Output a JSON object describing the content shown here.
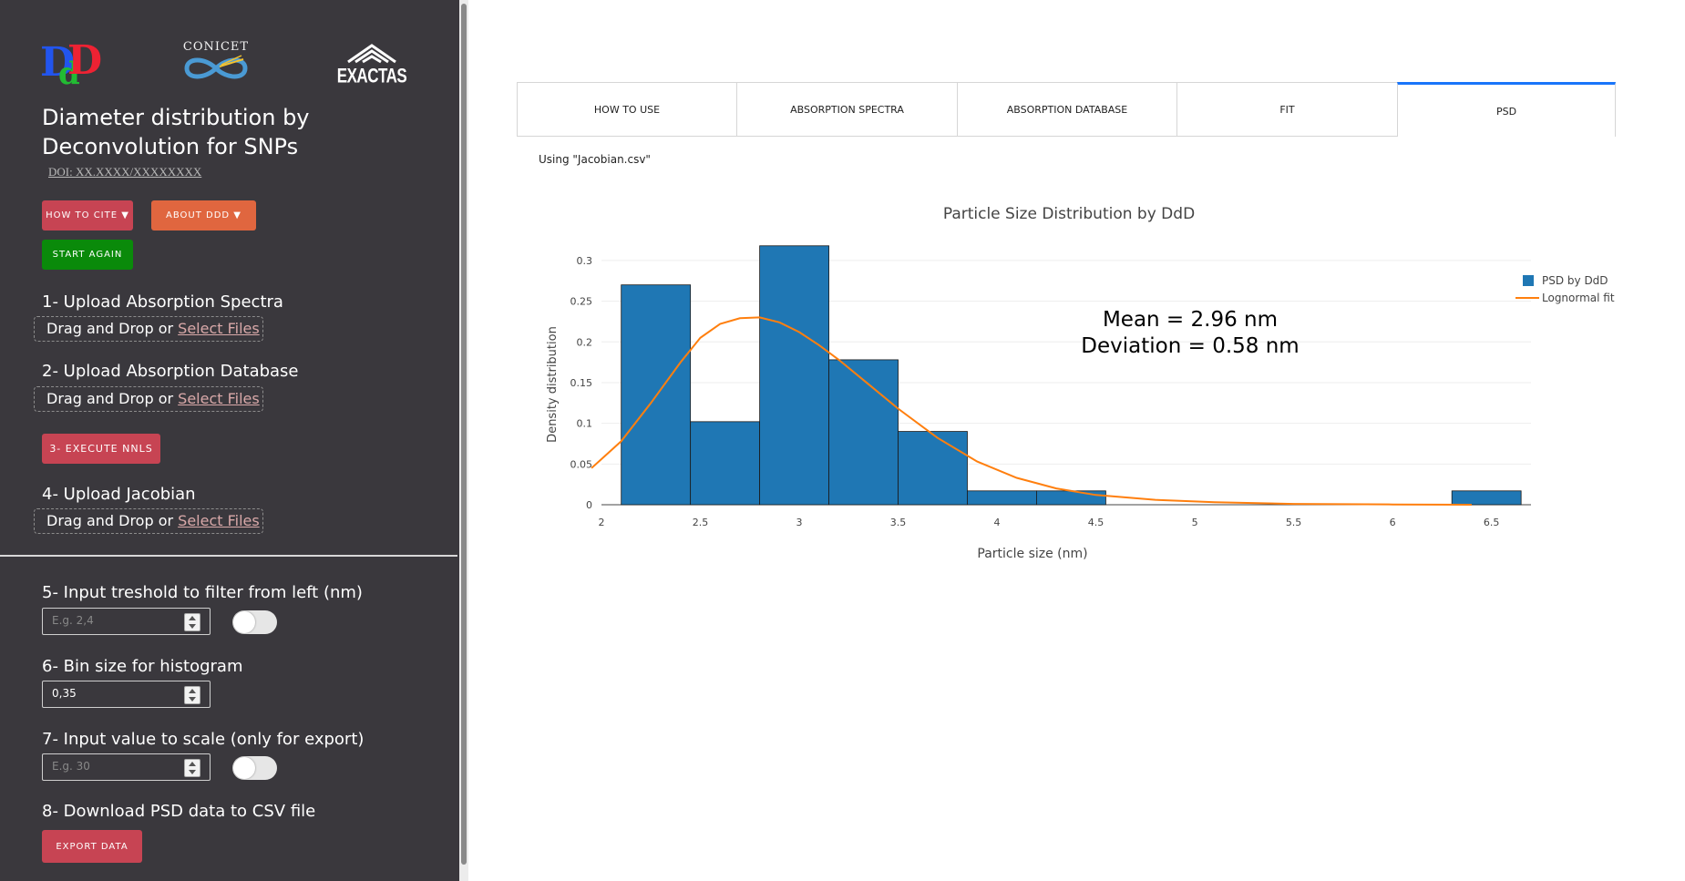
{
  "sidebar": {
    "logos": {
      "ddd_text": "DdD",
      "conicet_text": "CONICET",
      "exactas_text": "EXACTAS"
    },
    "title": "Diameter distribution by Deconvolution for SNPs",
    "doi": "DOI: XX.XXXX/XXXXXXXX",
    "buttons": {
      "cite": "HOW TO CITE ▼",
      "about": "ABOUT DDD ▼",
      "start": "START AGAIN",
      "nnls": "3- EXECUTE NNLS",
      "export": "EXPORT DATA"
    },
    "steps": {
      "s1": "1- Upload Absorption Spectra",
      "s2": "2- Upload Absorption Database",
      "s4": "4- Upload Jacobian",
      "s5": "5- Input treshold to filter from left (nm)",
      "s6": "6- Bin size for histogram",
      "s7": "7- Input value to scale (only for export)",
      "s8": "8- Download PSD data to CSV file"
    },
    "dropzone": {
      "prefix": "Drag and Drop or ",
      "link": "Select Files"
    },
    "inputs": {
      "threshold_placeholder": "E.g. 2,4",
      "bin_value": "0,35",
      "scale_placeholder": "E.g. 30"
    },
    "toggles": {
      "threshold_on": false,
      "scale_on": false
    }
  },
  "tabs": [
    {
      "label": "HOW TO USE",
      "active": false
    },
    {
      "label": "ABSORPTION SPECTRA",
      "active": false
    },
    {
      "label": "ABSORPTION DATABASE",
      "active": false
    },
    {
      "label": "FIT",
      "active": false
    },
    {
      "label": "PSD",
      "active": true
    }
  ],
  "main": {
    "using_file": "Using \"Jacobian.csv\""
  },
  "colors": {
    "bar": "#1f77b4",
    "fit": "#ff7f0e",
    "accent_tab": "#1975fa"
  },
  "chart_data": {
    "type": "bar",
    "title": "Particle Size Distribution by DdD",
    "xlabel": "Particle size (nm)",
    "ylabel": "Density distribution",
    "xlim": [
      2.0,
      6.7
    ],
    "ylim": [
      0,
      0.32
    ],
    "xticks": [
      "2",
      "2.5",
      "3",
      "3.5",
      "4",
      "4.5",
      "5",
      "5.5",
      "6",
      "6.5"
    ],
    "yticks": [
      "0",
      "0.05",
      "0.1",
      "0.15",
      "0.2",
      "0.25",
      "0.3"
    ],
    "grid": true,
    "legend_position": "top-right",
    "annotation": [
      "Mean = 2.96 nm",
      "Deviation = 0.58 nm"
    ],
    "series": [
      {
        "name": "PSD by DdD",
        "kind": "histogram",
        "bin_size": 0.35,
        "bins": [
          {
            "x0": 2.1,
            "x1": 2.45,
            "y": 0.27
          },
          {
            "x0": 2.45,
            "x1": 2.8,
            "y": 0.102
          },
          {
            "x0": 2.8,
            "x1": 3.15,
            "y": 0.318
          },
          {
            "x0": 3.15,
            "x1": 3.5,
            "y": 0.178
          },
          {
            "x0": 3.5,
            "x1": 3.85,
            "y": 0.09
          },
          {
            "x0": 3.85,
            "x1": 4.2,
            "y": 0.017
          },
          {
            "x0": 4.2,
            "x1": 4.55,
            "y": 0.017
          },
          {
            "x0": 6.3,
            "x1": 6.65,
            "y": 0.017
          }
        ]
      },
      {
        "name": "Lognormal fit",
        "kind": "line",
        "x": [
          1.95,
          2.1,
          2.25,
          2.4,
          2.5,
          2.6,
          2.7,
          2.8,
          2.9,
          3.0,
          3.1,
          3.2,
          3.35,
          3.5,
          3.7,
          3.9,
          4.1,
          4.3,
          4.5,
          4.8,
          5.1,
          5.5,
          6.0,
          6.4
        ],
        "y": [
          0.045,
          0.078,
          0.125,
          0.175,
          0.205,
          0.222,
          0.229,
          0.23,
          0.224,
          0.212,
          0.196,
          0.178,
          0.148,
          0.118,
          0.082,
          0.053,
          0.033,
          0.02,
          0.012,
          0.006,
          0.003,
          0.001,
          0.0003,
          0.0
        ]
      }
    ]
  }
}
